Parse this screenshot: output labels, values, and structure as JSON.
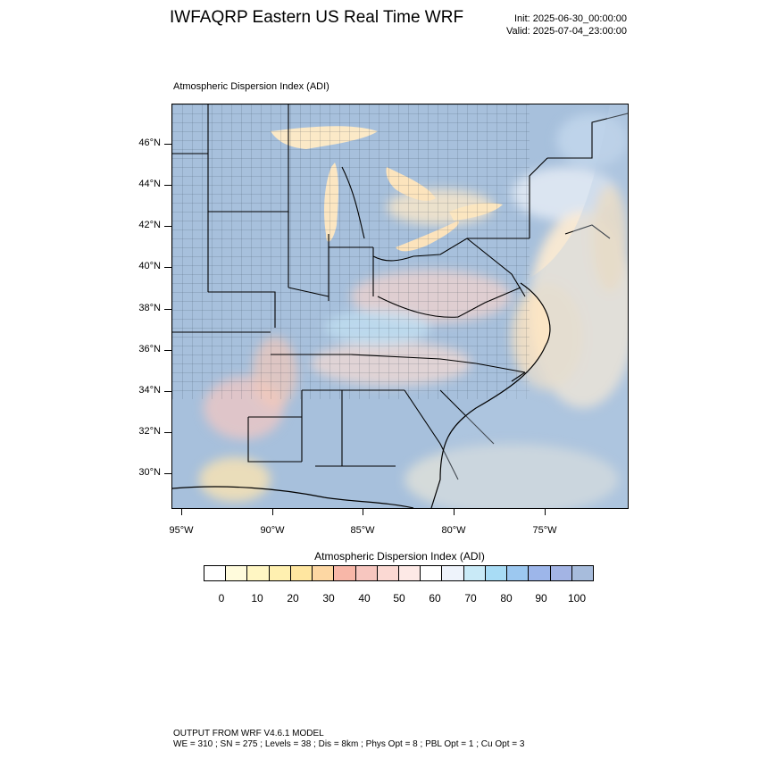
{
  "header": {
    "title": "IWFAQRP Eastern US Real Time WRF",
    "init": "Init: 2025-06-30_00:00:00",
    "valid": "Valid: 2025-07-04_23:00:00"
  },
  "map": {
    "field_label": "Atmospheric Dispersion Index   (ADI)",
    "lat_labels": [
      "46°N",
      "44°N",
      "42°N",
      "40°N",
      "38°N",
      "36°N",
      "34°N",
      "32°N",
      "30°N"
    ],
    "lon_labels": [
      "95°W",
      "90°W",
      "85°W",
      "80°W",
      "75°W"
    ]
  },
  "colorbar": {
    "title": "Atmospheric Dispersion Index  (ADI)",
    "labels": [
      "0",
      "10",
      "20",
      "30",
      "40",
      "50",
      "60",
      "70",
      "80",
      "90",
      "100"
    ],
    "colors": [
      "#ffffff",
      "#fffbdc",
      "#fff6c3",
      "#fff0b0",
      "#ffe6a0",
      "#fdd7a3",
      "#f8b7a8",
      "#f7c6bf",
      "#fbd9d3",
      "#fde9e6",
      "#ffffff",
      "#eef3fb",
      "#c9eaf7",
      "#a8dcf5",
      "#9cc8f0",
      "#9db6ea",
      "#a3b4e4",
      "#a7bcdc"
    ]
  },
  "footer": {
    "line1": "OUTPUT FROM WRF V4.6.1 MODEL",
    "line2": "WE = 310 ; SN = 275 ; Levels = 38 ; Dis = 8km ; Phys Opt = 8 ; PBL Opt = 1 ; Cu Opt = 3"
  }
}
